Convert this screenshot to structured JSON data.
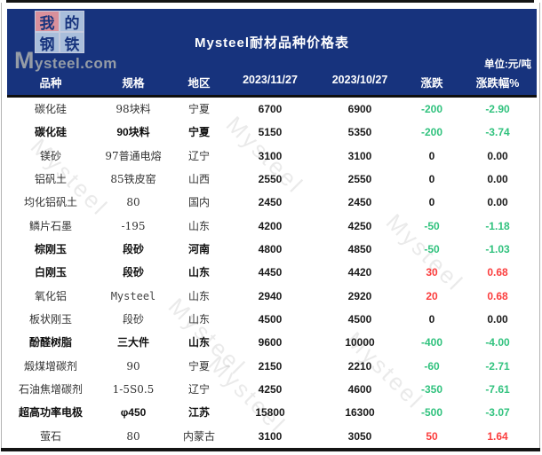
{
  "theme": {
    "header_bg": "#17337d",
    "up_color": "#fb3e3e",
    "down_color": "#31c27e",
    "flat_color": "#1a1a1a",
    "logo_red_tile_bg": "#d9909b",
    "logo_blue_tile_bg": "#a9bedb",
    "logo_char_color": "#17337d",
    "logo_text_color": "#959ca6"
  },
  "header": {
    "logo": {
      "tiles": [
        "我",
        "的",
        "钢",
        "铁"
      ],
      "site": "Mysteel.com"
    },
    "title": "Mysteel耐材品种价格表",
    "unit_label": "单位:元/吨"
  },
  "watermark": {
    "text": "Mysteel"
  },
  "chart_data": {
    "type": "table",
    "title": "Mysteel耐材品种价格表",
    "unit": "元/吨",
    "columns": [
      "品种",
      "规格",
      "地区",
      "2023/11/27",
      "2023/10/27",
      "涨跌",
      "涨跌幅%"
    ],
    "rows": [
      {
        "name": "碳化硅",
        "spec": "98块料",
        "region": "宁夏",
        "price_new": 6700,
        "price_old": 6900,
        "change": -200,
        "change_pct": "-2.90",
        "emph": false
      },
      {
        "name": "碳化硅",
        "spec": "90块料",
        "region": "宁夏",
        "price_new": 5150,
        "price_old": 5350,
        "change": -200,
        "change_pct": "-3.74",
        "emph": true
      },
      {
        "name": "镁砂",
        "spec": "97普通电熔",
        "region": "辽宁",
        "price_new": 3100,
        "price_old": 3100,
        "change": 0,
        "change_pct": "0.00",
        "emph": false
      },
      {
        "name": "铝矾土",
        "spec": "85铁皮窑",
        "region": "山西",
        "price_new": 2550,
        "price_old": 2550,
        "change": 0,
        "change_pct": "0.00",
        "emph": false
      },
      {
        "name": "均化铝矾土",
        "spec": "80",
        "region": "国内",
        "price_new": 2450,
        "price_old": 2450,
        "change": 0,
        "change_pct": "0.00",
        "emph": false
      },
      {
        "name": "鳞片石墨",
        "spec": "-195",
        "region": "山东",
        "price_new": 4200,
        "price_old": 4250,
        "change": -50,
        "change_pct": "-1.18",
        "emph": false
      },
      {
        "name": "棕刚玉",
        "spec": "段砂",
        "region": "河南",
        "price_new": 4800,
        "price_old": 4850,
        "change": -50,
        "change_pct": "-1.03",
        "emph": true
      },
      {
        "name": "白刚玉",
        "spec": "段砂",
        "region": "山东",
        "price_new": 4450,
        "price_old": 4420,
        "change": 30,
        "change_pct": "0.68",
        "emph": true
      },
      {
        "name": "氧化铝",
        "spec": "Mysteel",
        "region": "山东",
        "price_new": 2940,
        "price_old": 2920,
        "change": 20,
        "change_pct": "0.68",
        "emph": false,
        "spec_mono": true
      },
      {
        "name": "板状刚玉",
        "spec": "段砂",
        "region": "山东",
        "price_new": 4500,
        "price_old": 4500,
        "change": 0,
        "change_pct": "0.00",
        "emph": false
      },
      {
        "name": "酚醛树脂",
        "spec": "三大件",
        "region": "山东",
        "price_new": 9600,
        "price_old": 10000,
        "change": -400,
        "change_pct": "-4.00",
        "emph": true
      },
      {
        "name": "煅煤增碳剂",
        "spec": "90",
        "region": "宁夏",
        "price_new": 2150,
        "price_old": 2210,
        "change": -60,
        "change_pct": "-2.71",
        "emph": false
      },
      {
        "name": "石油焦增碳剂",
        "spec": "1-5S0.5",
        "region": "辽宁",
        "price_new": 4250,
        "price_old": 4600,
        "change": -350,
        "change_pct": "-7.61",
        "emph": false
      },
      {
        "name": "超高功率电极",
        "spec": "φ450",
        "region": "江苏",
        "price_new": 15800,
        "price_old": 16300,
        "change": -500,
        "change_pct": "-3.07",
        "emph": true
      },
      {
        "name": "萤石",
        "spec": "80",
        "region": "内蒙古",
        "price_new": 3100,
        "price_old": 3050,
        "change": 50,
        "change_pct": "1.64",
        "emph": false
      }
    ]
  }
}
